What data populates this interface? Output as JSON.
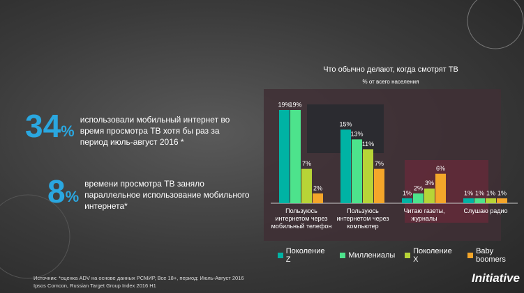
{
  "stats": [
    {
      "number": "34",
      "unit": "%",
      "text": "использовали мобильный интернет во время  просмотра ТВ хотя бы раз за период июль-август 2016 *"
    },
    {
      "number": "8",
      "unit": "%",
      "text": "времени просмотра ТВ заняло параллельное использование мобильного интернета*"
    }
  ],
  "chart_data": {
    "type": "bar",
    "title": "Что обычно делают, когда смотрят ТВ",
    "subtitle": "% от всего населения",
    "categories": [
      "Пользуюсь интернетом через мобильный телефон",
      "Пользуюсь интернетом через компьютер",
      "Читаю газеты, журналы",
      "Слушаю радио"
    ],
    "series": [
      {
        "name": "Поколение Z",
        "color": "#00b3a4",
        "values": [
          19,
          15,
          1,
          1
        ],
        "value_labels": [
          "19%",
          "15%",
          "1%",
          "1%"
        ]
      },
      {
        "name": "Миллениалы",
        "color": "#4de38c",
        "values": [
          19,
          13,
          2,
          1
        ],
        "value_labels": [
          "19%",
          "13%",
          "2%",
          "1%"
        ]
      },
      {
        "name": "Поколение X",
        "color": "#b7d437",
        "values": [
          7,
          11,
          3,
          1
        ],
        "value_labels": [
          "7%",
          "11%",
          "3%",
          "1%"
        ]
      },
      {
        "name": "Baby boomers",
        "color": "#f4a62a",
        "values": [
          2,
          7,
          6,
          1
        ],
        "value_labels": [
          "2%",
          "7%",
          "6%",
          "1%"
        ]
      }
    ],
    "legend": "bottom"
  },
  "footnote": [
    "Источник: *оценка ADV на основе данных РСМИР, Все 18+, период: Июль-Август 2016",
    "Ipsos Comcon, Russian Target Group Index 2016 H1"
  ],
  "logo": "Initiative"
}
